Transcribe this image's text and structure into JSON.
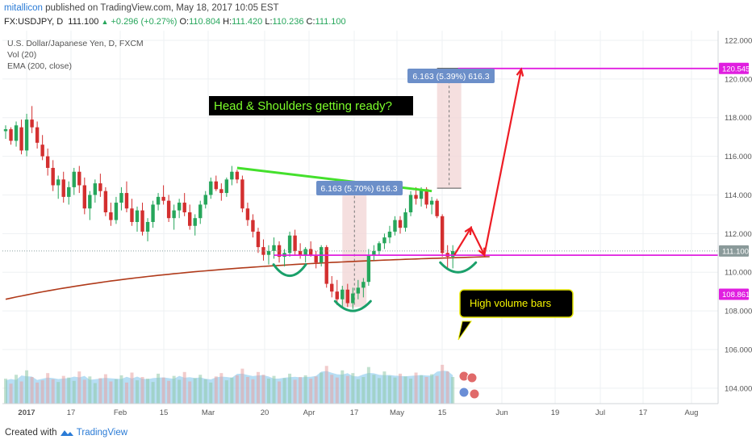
{
  "header": {
    "author": "mitallicon",
    "published": " published on TradingView.com, May 18, 2017 10:05 EST",
    "symbol": "FX:USDJPY, D",
    "last": "111.100",
    "change_arrow": "▲",
    "change": "+0.296 (+0.27%)",
    "open_label": "O:",
    "open": "110.804",
    "high_label": "H:",
    "high": "111.420",
    "low_label": "L:",
    "low": "110.236",
    "close_label": "C:",
    "close": "111.100"
  },
  "legend": {
    "instrument": "U.S. Dollar/Japanese Yen, D, FXCM",
    "volume": "Vol (20)",
    "ema": "EMA (200, close)"
  },
  "footer": {
    "created_with": "Created with",
    "brand": "TradingView"
  },
  "colors": {
    "up": "#26a65b",
    "down": "#d32f2f",
    "ema": "#b03a1a",
    "magenta": "#e01ee0",
    "trend": "#44e02c",
    "shoulder": "#1aa06a",
    "arrow": "#ee1c25",
    "measure_fill": "#f3d7d7",
    "measure_label": "#6c8fc9",
    "volume_fill": "#9fd3f0"
  },
  "chart_data": {
    "type": "candlestick",
    "symbol": "USDJPY",
    "timeframe": "D",
    "ylim": [
      103.2,
      122.5
    ],
    "y_ticks": [
      "104.000",
      "106.000",
      "108.000",
      "110.000",
      "112.000",
      "114.000",
      "116.000",
      "118.000",
      "120.000",
      "122.000"
    ],
    "x_ticks": [
      "2017",
      "17",
      "Feb",
      "15",
      "Mar",
      "20",
      "Apr",
      "17",
      "May",
      "15",
      "Jun",
      "19",
      "Jul",
      "17",
      "Aug"
    ],
    "price_labels": [
      {
        "value": 120.545,
        "text": "120.545",
        "style": "magenta"
      },
      {
        "value": 111.1,
        "text": "111.100",
        "style": "gray"
      },
      {
        "value": 108.861,
        "text": "108.861",
        "style": "magenta"
      }
    ],
    "annotations": {
      "title_box": "Head & Shoulders getting ready?",
      "volume_note": "High volume bars",
      "measure_upper": "6.163 (5.39%) 616.3",
      "measure_lower": "6.163 (5.70%) 616.3",
      "neckline": 110.88,
      "target": 120.545
    },
    "candles": [
      [
        117.3,
        117.6,
        116.9,
        117.4
      ],
      [
        117.4,
        117.5,
        116.6,
        116.8
      ],
      [
        116.8,
        117.8,
        116.5,
        117.6
      ],
      [
        117.5,
        117.9,
        116.1,
        116.3
      ],
      [
        116.3,
        118.2,
        116.0,
        117.9
      ],
      [
        117.9,
        118.6,
        117.2,
        117.5
      ],
      [
        117.5,
        117.8,
        116.4,
        116.7
      ],
      [
        116.6,
        117.1,
        115.8,
        116.0
      ],
      [
        116.0,
        116.4,
        115.0,
        115.4
      ],
      [
        115.4,
        115.8,
        114.2,
        114.5
      ],
      [
        114.5,
        115.0,
        113.8,
        114.8
      ],
      [
        114.8,
        115.2,
        113.6,
        113.9
      ],
      [
        113.9,
        114.7,
        113.5,
        114.4
      ],
      [
        114.4,
        115.4,
        114.0,
        115.2
      ],
      [
        115.2,
        115.5,
        114.1,
        114.5
      ],
      [
        114.5,
        114.9,
        113.0,
        113.3
      ],
      [
        113.3,
        114.2,
        112.7,
        114.0
      ],
      [
        114.0,
        114.8,
        113.6,
        114.6
      ],
      [
        114.6,
        115.1,
        113.9,
        114.2
      ],
      [
        114.2,
        114.4,
        112.9,
        113.1
      ],
      [
        113.1,
        113.6,
        112.4,
        112.7
      ],
      [
        112.7,
        113.9,
        112.5,
        113.6
      ],
      [
        113.6,
        114.4,
        113.2,
        114.1
      ],
      [
        114.1,
        114.7,
        113.1,
        113.3
      ],
      [
        113.3,
        113.8,
        112.4,
        112.6
      ],
      [
        112.6,
        113.4,
        112.1,
        113.2
      ],
      [
        113.2,
        113.6,
        111.9,
        112.1
      ],
      [
        112.1,
        112.8,
        111.6,
        112.6
      ],
      [
        112.6,
        113.7,
        112.3,
        113.5
      ],
      [
        113.5,
        114.1,
        113.2,
        113.9
      ],
      [
        113.9,
        114.5,
        113.5,
        113.7
      ],
      [
        113.7,
        114.0,
        112.6,
        112.8
      ],
      [
        112.8,
        113.5,
        112.2,
        113.2
      ],
      [
        113.2,
        113.8,
        112.8,
        113.6
      ],
      [
        113.6,
        114.1,
        112.9,
        113.1
      ],
      [
        113.1,
        113.5,
        112.2,
        112.4
      ],
      [
        112.4,
        113.0,
        111.9,
        112.8
      ],
      [
        112.8,
        113.7,
        112.5,
        113.5
      ],
      [
        113.5,
        114.2,
        113.3,
        114.0
      ],
      [
        114.0,
        114.9,
        113.8,
        114.7
      ],
      [
        114.7,
        115.0,
        114.2,
        114.3
      ],
      [
        114.3,
        114.6,
        113.7,
        114.1
      ],
      [
        114.1,
        114.9,
        113.9,
        114.8
      ],
      [
        114.8,
        115.5,
        114.5,
        115.2
      ],
      [
        115.2,
        115.3,
        114.6,
        114.8
      ],
      [
        114.8,
        115.0,
        113.1,
        113.3
      ],
      [
        113.3,
        113.6,
        112.4,
        112.7
      ],
      [
        112.7,
        113.0,
        111.8,
        112.1
      ],
      [
        112.1,
        112.3,
        111.0,
        111.3
      ],
      [
        111.3,
        111.7,
        110.6,
        110.9
      ],
      [
        110.9,
        111.4,
        110.4,
        111.1
      ],
      [
        111.1,
        111.8,
        110.7,
        111.4
      ],
      [
        111.4,
        111.6,
        110.5,
        110.8
      ],
      [
        110.8,
        111.2,
        110.3,
        111.0
      ],
      [
        111.0,
        112.1,
        110.8,
        111.9
      ],
      [
        111.9,
        112.2,
        110.9,
        111.1
      ],
      [
        111.1,
        111.5,
        110.7,
        110.9
      ],
      [
        110.9,
        111.3,
        110.5,
        111.2
      ],
      [
        111.2,
        111.6,
        110.8,
        110.9
      ],
      [
        110.9,
        111.1,
        110.2,
        110.5
      ],
      [
        110.5,
        111.4,
        110.3,
        111.3
      ],
      [
        111.3,
        111.4,
        109.2,
        109.4
      ],
      [
        109.4,
        109.8,
        108.7,
        109.0
      ],
      [
        109.0,
        109.6,
        108.3,
        108.6
      ],
      [
        108.6,
        109.3,
        108.2,
        109.1
      ],
      [
        109.1,
        109.4,
        108.2,
        108.4
      ],
      [
        108.4,
        109.2,
        108.1,
        108.9
      ],
      [
        108.9,
        109.6,
        108.6,
        109.2
      ],
      [
        109.2,
        109.7,
        108.7,
        109.5
      ],
      [
        109.5,
        111.2,
        109.3,
        110.9
      ],
      [
        110.9,
        111.4,
        110.6,
        111.1
      ],
      [
        111.1,
        111.6,
        110.9,
        111.5
      ],
      [
        111.5,
        112.0,
        111.2,
        111.8
      ],
      [
        111.8,
        112.4,
        111.5,
        112.1
      ],
      [
        112.1,
        112.9,
        111.9,
        112.7
      ],
      [
        112.7,
        112.9,
        112.0,
        112.3
      ],
      [
        112.3,
        113.3,
        112.1,
        113.1
      ],
      [
        113.1,
        114.2,
        112.9,
        114.0
      ],
      [
        114.0,
        114.4,
        113.5,
        113.8
      ],
      [
        113.8,
        114.4,
        113.4,
        114.3
      ],
      [
        114.3,
        114.4,
        113.3,
        113.5
      ],
      [
        113.5,
        113.9,
        113.0,
        113.7
      ],
      [
        113.7,
        113.8,
        112.8,
        112.9
      ],
      [
        112.9,
        113.0,
        110.8,
        111.0
      ],
      [
        111.0,
        111.4,
        110.2,
        110.8
      ],
      [
        110.8,
        111.4,
        110.2,
        111.1
      ]
    ],
    "volume": [
      45,
      36,
      52,
      40,
      60,
      48,
      38,
      42,
      55,
      44,
      39,
      50,
      47,
      41,
      58,
      43,
      49,
      37,
      46,
      53,
      40,
      44,
      51,
      38,
      56,
      42,
      48,
      45,
      39,
      54,
      47,
      41,
      50,
      43,
      57,
      40,
      46,
      52,
      44,
      38,
      49,
      55,
      42,
      47,
      51,
      63,
      48,
      44,
      57,
      52,
      45,
      50,
      40,
      46,
      54,
      43,
      48,
      51,
      45,
      49,
      56,
      68,
      52,
      47,
      60,
      50,
      55,
      44,
      48,
      66,
      52,
      46,
      58,
      50,
      47,
      54,
      49,
      45,
      56,
      51,
      48,
      53,
      50,
      70,
      58,
      48
    ],
    "volume_max": 160
  }
}
